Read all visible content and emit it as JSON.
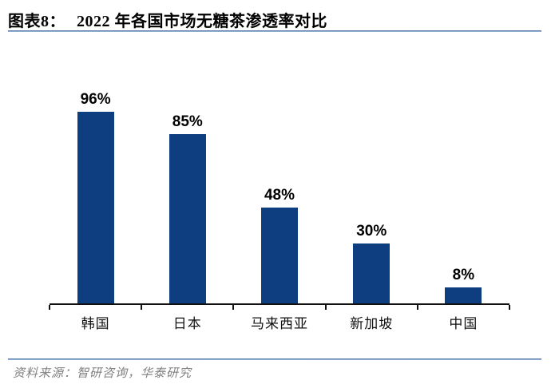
{
  "header": {
    "title_prefix": "图表8：",
    "title_main": "2022 年各国市场无糖茶渗透率对比"
  },
  "chart_data": {
    "type": "bar",
    "title": "2022 年各国市场无糖茶渗透率对比",
    "categories": [
      "韩国",
      "日本",
      "马来西亚",
      "新加坡",
      "中国"
    ],
    "values": [
      96,
      85,
      48,
      30,
      8
    ],
    "value_labels": [
      "96%",
      "85%",
      "48%",
      "30%",
      "8%"
    ],
    "unit": "%",
    "xlabel": "",
    "ylabel": "",
    "ylim": [
      0,
      100
    ],
    "grid": false,
    "legend_position": "none",
    "bar_color": "#0e3d80",
    "axis_color": "#111111"
  },
  "footer": {
    "source": "资料来源：智研咨询，华泰研究"
  },
  "colors": {
    "accent_bar": "#0e3d80",
    "rule_blue_dark": "#44699e",
    "rule_blue_light": "#a9c4e0",
    "source_gray": "#808080",
    "text_black": "#000000"
  }
}
